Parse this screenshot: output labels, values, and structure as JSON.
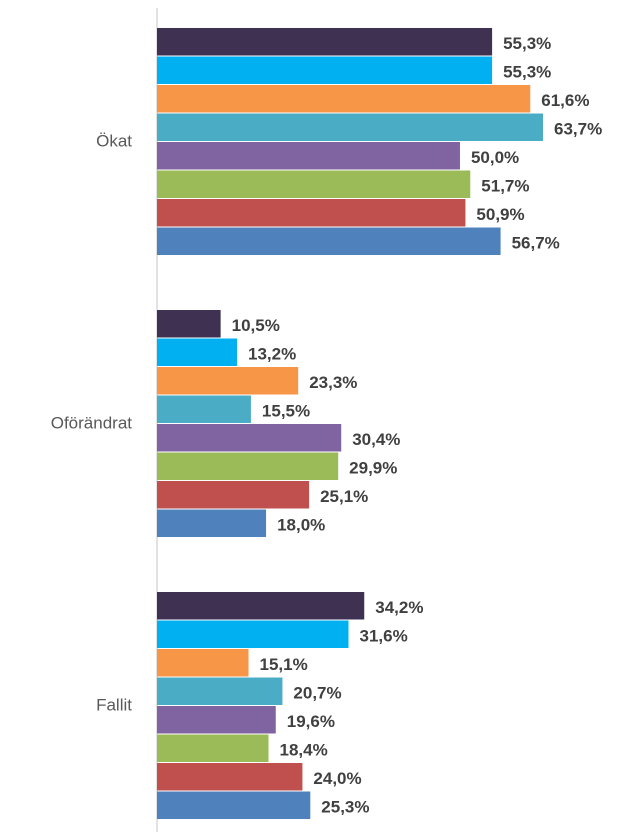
{
  "chart_data": {
    "type": "bar",
    "orientation": "horizontal",
    "categories": [
      "Ökat",
      "Oförändrat",
      "Fallit"
    ],
    "series": [
      {
        "color": "#3e3151",
        "values": [
          55.3,
          10.5,
          34.2
        ],
        "value_labels": [
          "55,3%",
          "10,5%",
          "34,2%"
        ]
      },
      {
        "color": "#00b0f0",
        "values": [
          55.3,
          13.2,
          31.6
        ],
        "value_labels": [
          "55,3%",
          "13,2%",
          "31,6%"
        ]
      },
      {
        "color": "#f79646",
        "values": [
          61.6,
          23.3,
          15.1
        ],
        "value_labels": [
          "61,6%",
          "23,3%",
          "15,1%"
        ]
      },
      {
        "color": "#4bacc6",
        "values": [
          63.7,
          15.5,
          20.7
        ],
        "value_labels": [
          "63,7%",
          "15,5%",
          "20,7%"
        ]
      },
      {
        "color": "#8064a2",
        "values": [
          50.0,
          30.4,
          19.6
        ],
        "value_labels": [
          "50,0%",
          "30,4%",
          "19,6%"
        ]
      },
      {
        "color": "#9bbb59",
        "values": [
          51.7,
          29.9,
          18.4
        ],
        "value_labels": [
          "51,7%",
          "29,9%",
          "18,4%"
        ]
      },
      {
        "color": "#c0504d",
        "values": [
          50.9,
          25.1,
          24.0
        ],
        "value_labels": [
          "50,9%",
          "25,1%",
          "24,0%"
        ]
      },
      {
        "color": "#4f81bd",
        "values": [
          56.7,
          18.0,
          25.3
        ],
        "value_labels": [
          "56,7%",
          "18,0%",
          "25,3%"
        ]
      }
    ]
  }
}
